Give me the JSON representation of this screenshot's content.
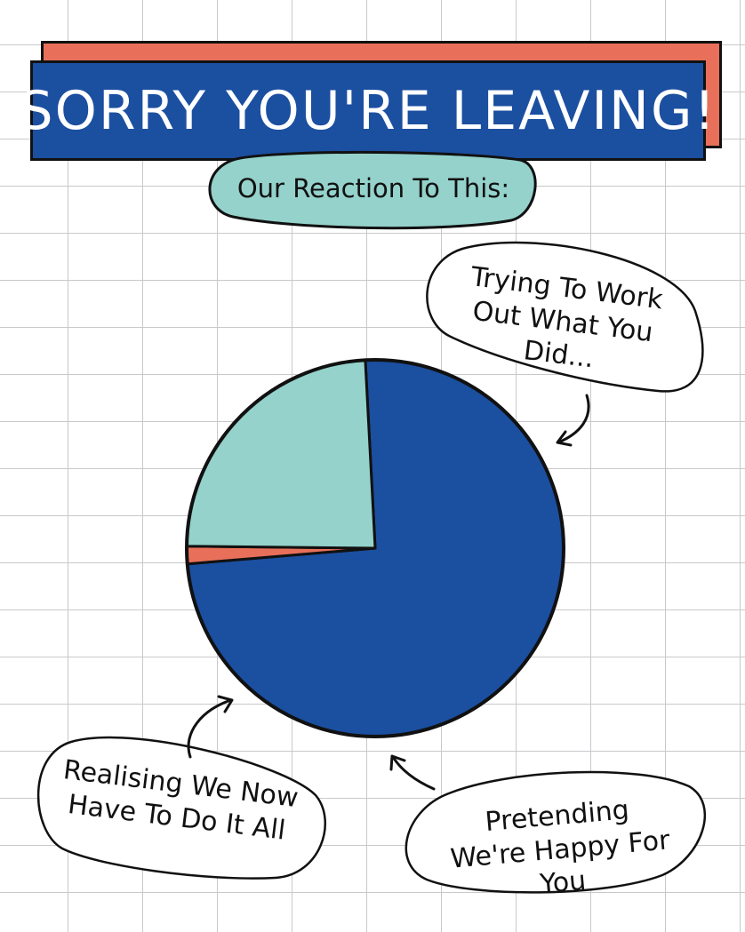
{
  "title": "SORRY YOU'RE LEAVING!",
  "subtitle": "Our Reaction To This:",
  "colors": {
    "navy": "#1b4fa0",
    "teal": "#94d2cb",
    "coral": "#e8705a",
    "grid": "#c9c9cd"
  },
  "chart_data": {
    "type": "pie",
    "title": "",
    "slices": [
      {
        "label": "Trying To Work Out What You Did...",
        "value": 74.5,
        "color": "#1b4fa0"
      },
      {
        "label": "Pretending We're Happy For You",
        "value": 1.5,
        "color": "#e8705a"
      },
      {
        "label": "Realising We Now Have To Do It All",
        "value": 24,
        "color": "#94d2cb"
      }
    ],
    "start_angle_deg": -3,
    "legend": "callout bubbles"
  }
}
